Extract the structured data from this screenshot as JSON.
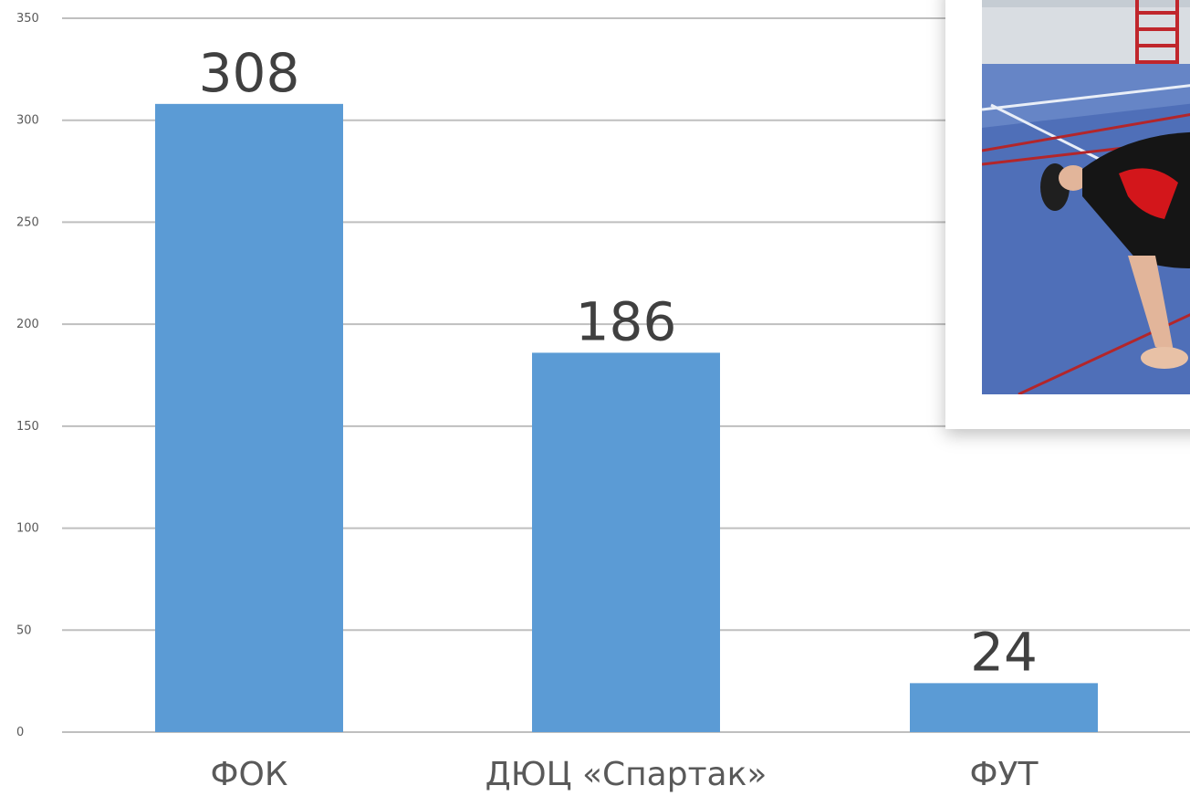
{
  "chart_data": {
    "type": "bar",
    "categories": [
      "ФОК",
      "ДЮЦ «Спартак»",
      "ФУТ"
    ],
    "values": [
      308,
      186,
      24
    ],
    "data_labels": [
      "308",
      "186",
      "24"
    ],
    "ylim": [
      0,
      350
    ],
    "yticks": [
      0,
      50,
      100,
      150,
      200,
      250,
      300,
      350
    ],
    "grid": true,
    "bar_color": "#5b9bd5",
    "grid_color": "#bfbfbf"
  },
  "photo": {
    "icon": "sports-hall-pushup-photo"
  }
}
